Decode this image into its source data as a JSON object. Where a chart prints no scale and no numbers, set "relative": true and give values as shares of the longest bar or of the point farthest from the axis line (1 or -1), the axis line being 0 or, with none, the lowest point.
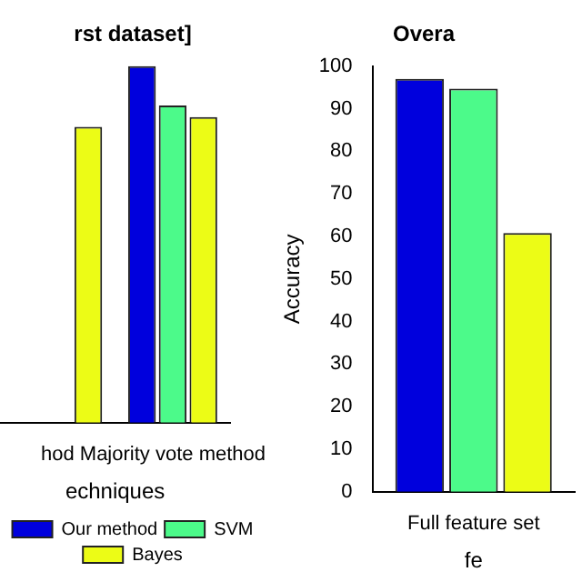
{
  "chart_data": [
    {
      "type": "bar",
      "title": "rst dataset]",
      "xlabel": "echniques",
      "categories": [
        "hod",
        "Majority vote method"
      ],
      "relative": true,
      "legend": "bottom",
      "grid": false,
      "series": [
        {
          "name": "Our method",
          "color": "#0000dd",
          "values": [
            null,
            1
          ]
        },
        {
          "name": "SVM",
          "color": "#4cfa8a",
          "values": [
            null,
            0.89
          ]
        },
        {
          "name": "Bayes",
          "color": "#ecfc16",
          "values": [
            0.83,
            0.857
          ]
        }
      ]
    },
    {
      "type": "bar",
      "title": "Overa",
      "xlabel": "fe",
      "ylabel": "Accuracy",
      "categories": [
        "Full feature set"
      ],
      "ylim": [
        0,
        100
      ],
      "yticks": [
        0,
        10,
        20,
        30,
        40,
        50,
        60,
        70,
        80,
        90,
        100
      ],
      "legend": false,
      "grid": false,
      "series": [
        {
          "color": "#0000dd",
          "values": [
            97
          ]
        },
        {
          "color": "#4cfa8a",
          "values": [
            94.7
          ]
        },
        {
          "color": "#ecfc16",
          "values": [
            60.8
          ]
        }
      ]
    }
  ]
}
